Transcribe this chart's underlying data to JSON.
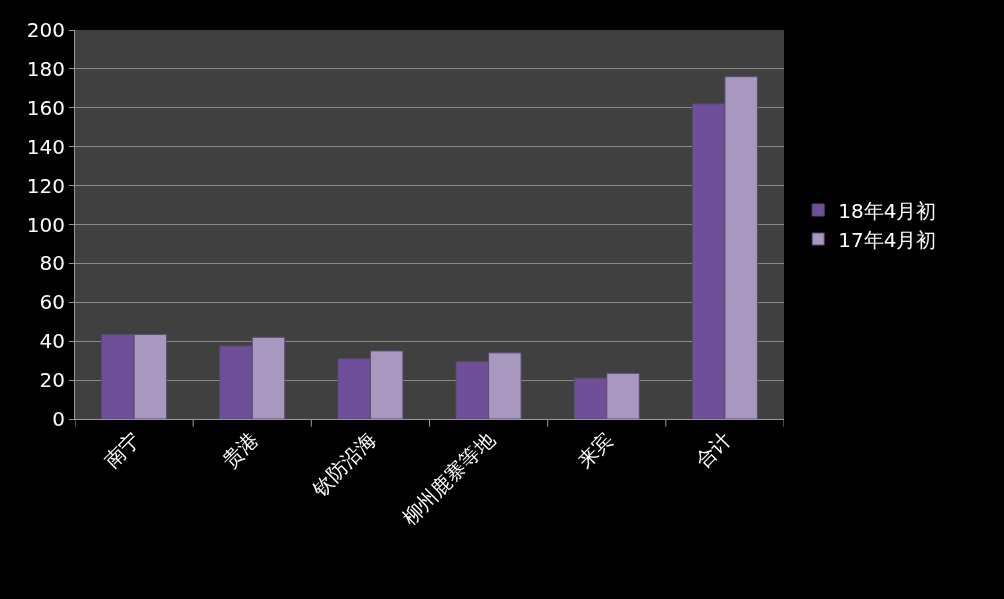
{
  "chart_data": {
    "type": "bar",
    "categories": [
      "南宁",
      "贵港",
      "钦防沿海",
      "柳州鹿寨等地",
      "来宾",
      "合计"
    ],
    "series": [
      {
        "name": "18年4月初",
        "color": "#6f4f9a",
        "values": [
          43.5,
          37.5,
          31,
          29.5,
          21,
          162
        ]
      },
      {
        "name": "17年4月初",
        "color": "#a898c0",
        "values": [
          43.5,
          42,
          35,
          34,
          23.5,
          176
        ]
      }
    ],
    "ylim": [
      0,
      200
    ],
    "yticks": [
      0,
      20,
      40,
      60,
      80,
      100,
      120,
      140,
      160,
      180,
      200
    ],
    "grid": "y",
    "legend": "right"
  }
}
